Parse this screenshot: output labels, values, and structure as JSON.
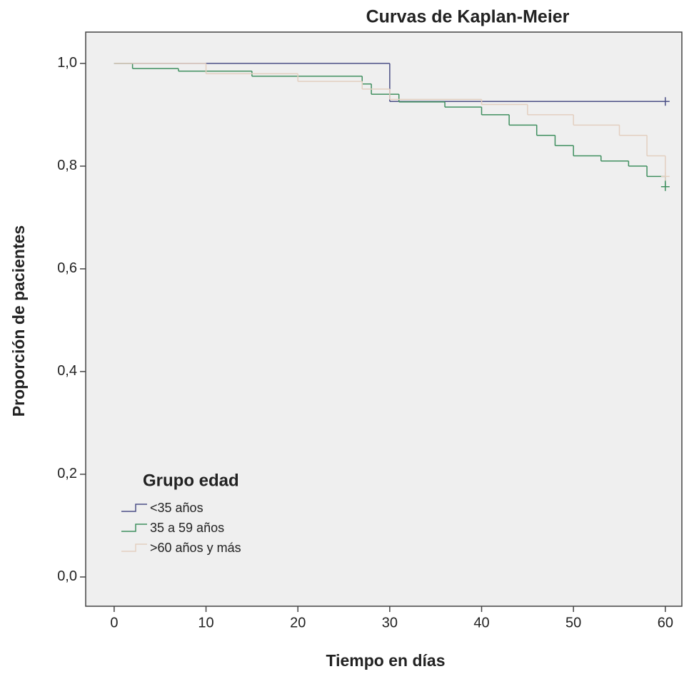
{
  "chart_data": {
    "type": "step",
    "title": "Curvas de Kaplan-Meier",
    "x_label": "Tiempo en días",
    "y_label": "Proporción de pacientes",
    "legend_title": "Grupo edad",
    "legend": "lower left",
    "xlim": [
      -3.1,
      61.8
    ],
    "ylim": [
      -0.057,
      1.061
    ],
    "xticks": [
      0,
      10,
      20,
      30,
      40,
      50,
      60
    ],
    "yticks": [
      {
        "value": 0,
        "label": "0,0"
      },
      {
        "value": 0.2,
        "label": "0,2"
      },
      {
        "value": 0.4,
        "label": "0,4"
      },
      {
        "value": 0.6,
        "label": "0,6"
      },
      {
        "value": 0.8,
        "label": "0,8"
      },
      {
        "value": 1,
        "label": "1,0"
      }
    ],
    "series": [
      {
        "name": "<35 años",
        "color": "#4b4f86",
        "x": [
          0,
          30,
          60
        ],
        "values": [
          1.0,
          0.926,
          0.926
        ]
      },
      {
        "name": "35 a 59 años",
        "color": "#3f8f5f",
        "x": [
          0,
          2,
          7,
          15,
          27,
          28,
          31,
          36,
          40,
          43,
          46,
          48,
          50,
          53,
          56,
          58,
          60
        ],
        "values": [
          1.0,
          0.99,
          0.985,
          0.975,
          0.96,
          0.94,
          0.925,
          0.915,
          0.9,
          0.88,
          0.86,
          0.84,
          0.82,
          0.81,
          0.8,
          0.78,
          0.76
        ]
      },
      {
        "name": ">60 años y más",
        "color": "#e3cfc0",
        "x": [
          0,
          10,
          20,
          27,
          30,
          40,
          45,
          50,
          55,
          58,
          60
        ],
        "values": [
          1.0,
          0.98,
          0.965,
          0.95,
          0.93,
          0.92,
          0.9,
          0.88,
          0.86,
          0.82,
          0.78
        ]
      }
    ]
  }
}
